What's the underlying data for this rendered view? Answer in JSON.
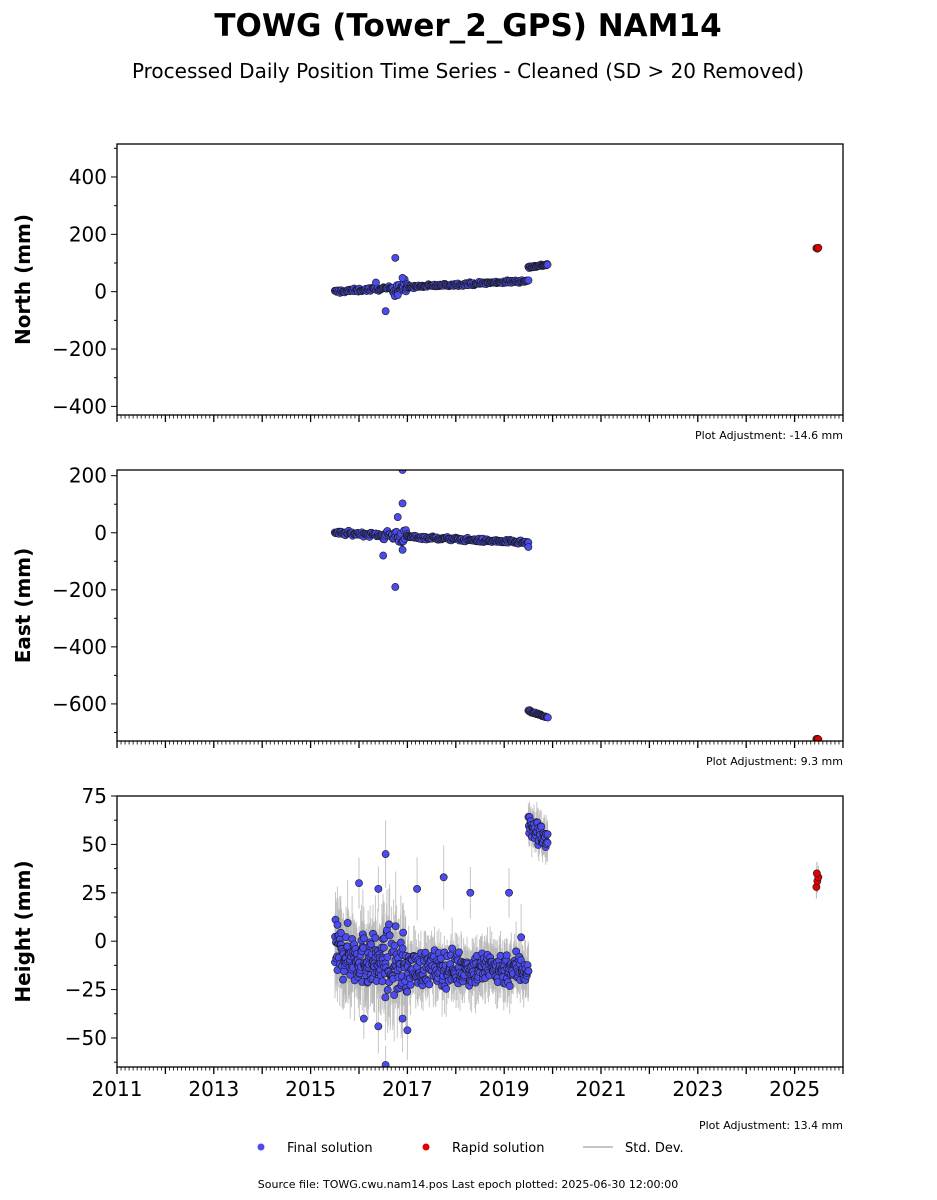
{
  "title": "TOWG (Tower_2_GPS) NAM14",
  "subtitle": "Processed Daily Position Time Series - Cleaned (SD > 20 Removed)",
  "source_line": "Source file: TOWG.cwu.nam14.pos  Last epoch plotted: 2025-06-30 12:00:00",
  "legend": [
    {
      "label": "Final solution",
      "color": "#4b4bf0",
      "kind": "marker"
    },
    {
      "label": "Rapid solution",
      "color": "#e00000",
      "kind": "marker"
    },
    {
      "label": "Std. Dev.",
      "color": "#b4b4b4",
      "kind": "line"
    }
  ],
  "colors": {
    "final": "#4b4bf0",
    "rapid": "#e00000",
    "stddev": "#b4b4b4",
    "edge": "#1a1a1a"
  },
  "chart_data": [
    {
      "type": "scatter",
      "ylabel": "North (mm)",
      "xlim": [
        2011,
        2026
      ],
      "ylim": [
        -430,
        515
      ],
      "yticks": [
        400,
        200,
        0,
        -200,
        -400
      ],
      "ytick_labels": [
        "400",
        "200",
        "0",
        "−200",
        "−400"
      ],
      "show_xtick_labels": false,
      "adjustment": "Plot Adjustment: -14.6 mm",
      "series": [
        {
          "name": "Final solution",
          "segments": [
            {
              "x0": 2015.5,
              "x1": 2016.7,
              "y0": 0,
              "y1": 13,
              "spread": 6,
              "n": 70
            },
            {
              "x0": 2016.7,
              "x1": 2017.0,
              "y0": 13,
              "y1": 16,
              "spread": 25,
              "n": 22
            },
            {
              "x0": 2017.0,
              "x1": 2019.5,
              "y0": 16,
              "y1": 38,
              "spread": 5,
              "n": 150
            },
            {
              "x0": 2019.5,
              "x1": 2019.9,
              "y0": 85,
              "y1": 95,
              "spread": 4,
              "n": 30
            }
          ],
          "outliers": [
            [
              2016.55,
              -68
            ],
            [
              2016.75,
              118
            ],
            [
              2016.9,
              48
            ],
            [
              2016.35,
              32
            ],
            [
              2016.8,
              -12
            ]
          ]
        },
        {
          "name": "Rapid solution",
          "points": [
            [
              2025.45,
              152
            ],
            [
              2025.47,
              150
            ],
            [
              2025.49,
              153
            ]
          ]
        }
      ]
    },
    {
      "type": "scatter",
      "ylabel": "East (mm)",
      "xlim": [
        2011,
        2026
      ],
      "ylim": [
        -730,
        220
      ],
      "yticks": [
        200,
        0,
        -200,
        -400,
        -600
      ],
      "ytick_labels": [
        "200",
        "0",
        "−200",
        "−400",
        "−600"
      ],
      "show_xtick_labels": false,
      "adjustment": "Plot Adjustment: 9.3 mm",
      "series": [
        {
          "name": "Final solution",
          "segments": [
            {
              "x0": 2015.5,
              "x1": 2016.5,
              "y0": 0,
              "y1": -8,
              "spread": 7,
              "n": 60
            },
            {
              "x0": 2016.5,
              "x1": 2017.0,
              "y0": -8,
              "y1": -14,
              "spread": 25,
              "n": 30
            },
            {
              "x0": 2017.0,
              "x1": 2019.5,
              "y0": -14,
              "y1": -35,
              "spread": 6,
              "n": 150
            },
            {
              "x0": 2019.5,
              "x1": 2019.9,
              "y0": -625,
              "y1": -648,
              "spread": 4,
              "n": 30
            }
          ],
          "outliers": [
            [
              2016.9,
              220
            ],
            [
              2016.9,
              103
            ],
            [
              2016.75,
              -190
            ],
            [
              2016.5,
              -80
            ],
            [
              2016.8,
              55
            ],
            [
              2016.9,
              -60
            ],
            [
              2019.5,
              -50
            ]
          ]
        },
        {
          "name": "Rapid solution",
          "points": [
            [
              2025.45,
              -723
            ],
            [
              2025.47,
              -722
            ],
            [
              2025.49,
              -724
            ]
          ]
        }
      ]
    },
    {
      "type": "scatter",
      "ylabel": "Height (mm)",
      "xlim": [
        2011,
        2026
      ],
      "ylim": [
        -65,
        75
      ],
      "yticks": [
        75,
        50,
        25,
        0,
        -25,
        -50
      ],
      "ytick_labels": [
        "75",
        "50",
        "25",
        "0",
        "−25",
        "−50"
      ],
      "xticks": [
        2011,
        2013,
        2015,
        2017,
        2019,
        2021,
        2023,
        2025
      ],
      "xtick_labels": [
        "2011",
        "2013",
        "2015",
        "2017",
        "2019",
        "2021",
        "2023",
        "2025"
      ],
      "show_xtick_labels": true,
      "adjustment": "Plot Adjustment: 13.4 mm",
      "series": [
        {
          "name": "Final solution",
          "segments": [
            {
              "x0": 2015.5,
              "x1": 2016.5,
              "y0": -5,
              "y1": -12,
              "spread": 13,
              "n": 140
            },
            {
              "x0": 2016.5,
              "x1": 2017.0,
              "y0": -10,
              "y1": -14,
              "spread": 16,
              "n": 60
            },
            {
              "x0": 2017.0,
              "x1": 2019.5,
              "y0": -14,
              "y1": -14,
              "spread": 9,
              "n": 260
            },
            {
              "x0": 2019.5,
              "x1": 2019.9,
              "y0": 60,
              "y1": 52,
              "spread": 6,
              "n": 45
            }
          ],
          "outliers": [
            [
              2016.55,
              45
            ],
            [
              2017.75,
              33
            ],
            [
              2016.4,
              27
            ],
            [
              2016.0,
              30
            ],
            [
              2017.2,
              27
            ],
            [
              2018.3,
              25
            ],
            [
              2019.1,
              25
            ],
            [
              2017.0,
              -46
            ],
            [
              2016.55,
              -64
            ],
            [
              2016.9,
              -40
            ],
            [
              2016.1,
              -40
            ],
            [
              2016.4,
              -44
            ],
            [
              2019.35,
              2
            ]
          ]
        },
        {
          "name": "Rapid solution",
          "points": [
            [
              2025.45,
              28
            ],
            [
              2025.47,
              31
            ],
            [
              2025.49,
              33
            ],
            [
              2025.46,
              35
            ]
          ]
        }
      ]
    }
  ]
}
